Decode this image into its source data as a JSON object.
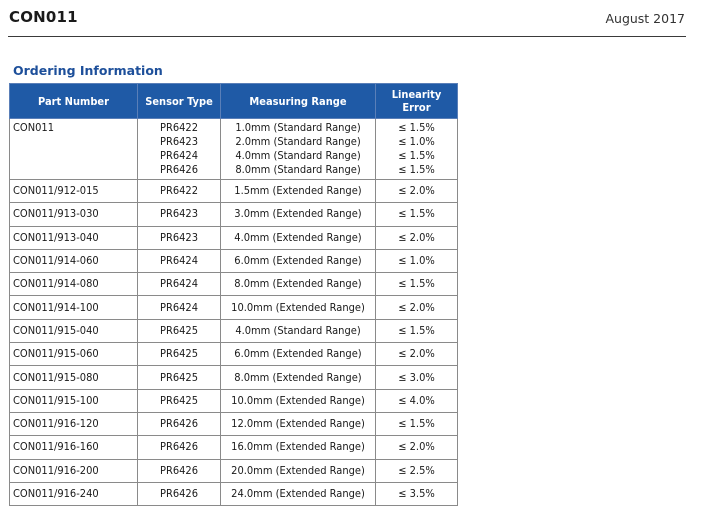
{
  "header": {
    "title": "CON011",
    "date": "August 2017"
  },
  "section": {
    "title": "Ordering Information"
  },
  "table": {
    "columns": [
      "Part Number",
      "Sensor Type",
      "Measuring Range",
      "Linearity Error"
    ],
    "first_row": {
      "part_number": "CON011",
      "items": [
        {
          "sensor_type": "PR6422",
          "measuring_range": "1.0mm (Standard Range)",
          "linearity_error": "≤ 1.5%"
        },
        {
          "sensor_type": "PR6423",
          "measuring_range": "2.0mm (Standard Range)",
          "linearity_error": "≤ 1.0%"
        },
        {
          "sensor_type": "PR6424",
          "measuring_range": "4.0mm (Standard Range)",
          "linearity_error": "≤ 1.5%"
        },
        {
          "sensor_type": "PR6426",
          "measuring_range": "8.0mm (Standard Range)",
          "linearity_error": "≤ 1.5%"
        }
      ]
    },
    "rows": [
      {
        "part_number": "CON011/912-015",
        "sensor_type": "PR6422",
        "measuring_range": "1.5mm (Extended Range)",
        "linearity_error": "≤ 2.0%"
      },
      {
        "part_number": "CON011/913-030",
        "sensor_type": "PR6423",
        "measuring_range": "3.0mm (Extended Range)",
        "linearity_error": "≤ 1.5%"
      },
      {
        "part_number": "CON011/913-040",
        "sensor_type": "PR6423",
        "measuring_range": "4.0mm (Extended Range)",
        "linearity_error": "≤ 2.0%"
      },
      {
        "part_number": "CON011/914-060",
        "sensor_type": "PR6424",
        "measuring_range": "6.0mm (Extended Range)",
        "linearity_error": "≤ 1.0%"
      },
      {
        "part_number": "CON011/914-080",
        "sensor_type": "PR6424",
        "measuring_range": "8.0mm (Extended Range)",
        "linearity_error": "≤ 1.5%"
      },
      {
        "part_number": "CON011/914-100",
        "sensor_type": "PR6424",
        "measuring_range": "10.0mm (Extended Range)",
        "linearity_error": "≤ 2.0%"
      },
      {
        "part_number": "CON011/915-040",
        "sensor_type": "PR6425",
        "measuring_range": "4.0mm (Standard Range)",
        "linearity_error": "≤ 1.5%"
      },
      {
        "part_number": "CON011/915-060",
        "sensor_type": "PR6425",
        "measuring_range": "6.0mm (Extended Range)",
        "linearity_error": "≤ 2.0%"
      },
      {
        "part_number": "CON011/915-080",
        "sensor_type": "PR6425",
        "measuring_range": "8.0mm (Extended Range)",
        "linearity_error": "≤ 3.0%"
      },
      {
        "part_number": "CON011/915-100",
        "sensor_type": "PR6425",
        "measuring_range": "10.0mm (Extended Range)",
        "linearity_error": "≤ 4.0%"
      },
      {
        "part_number": "CON011/916-120",
        "sensor_type": "PR6426",
        "measuring_range": "12.0mm (Extended Range)",
        "linearity_error": "≤ 1.5%"
      },
      {
        "part_number": "CON011/916-160",
        "sensor_type": "PR6426",
        "measuring_range": "16.0mm (Extended Range)",
        "linearity_error": "≤ 2.0%"
      },
      {
        "part_number": "CON011/916-200",
        "sensor_type": "PR6426",
        "measuring_range": "20.0mm (Extended Range)",
        "linearity_error": "≤ 2.5%"
      },
      {
        "part_number": "CON011/916-240",
        "sensor_type": "PR6426",
        "measuring_range": "24.0mm (Extended Range)",
        "linearity_error": "≤ 3.5%"
      }
    ]
  },
  "colors": {
    "header_fill": "#1f5aa6",
    "section_title": "#1d4f9a",
    "rule": "#3a3a3a"
  }
}
